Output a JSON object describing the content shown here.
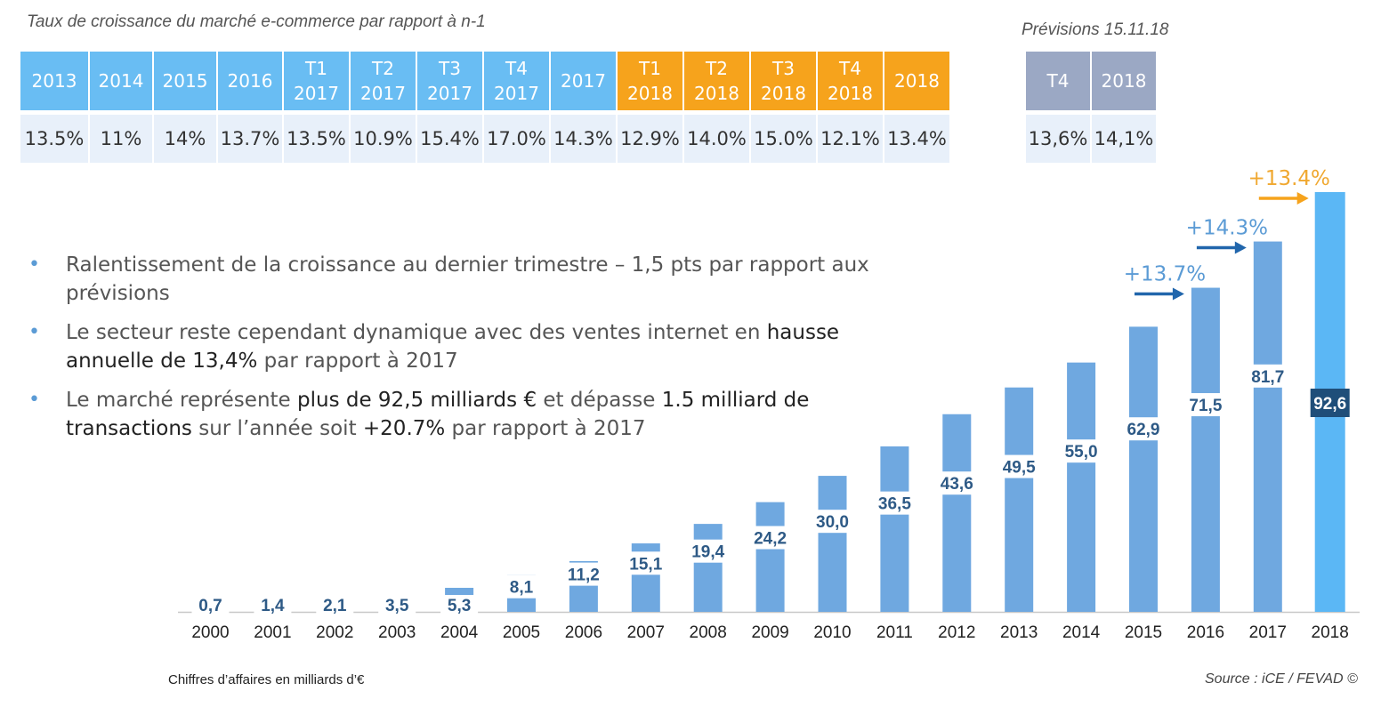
{
  "header": {
    "title": "Taux de croissance du marché e-commerce par rapport à n-1",
    "forecast_title": "Prévisions 15.11.18"
  },
  "growth_table": {
    "columns": [
      {
        "line1": "2013",
        "line2": "",
        "color": "blue",
        "value": "13.5%"
      },
      {
        "line1": "2014",
        "line2": "",
        "color": "blue",
        "value": "11%"
      },
      {
        "line1": "2015",
        "line2": "",
        "color": "blue",
        "value": "14%"
      },
      {
        "line1": "2016",
        "line2": "",
        "color": "blue",
        "value": "13.7%"
      },
      {
        "line1": "T1",
        "line2": "2017",
        "color": "blue",
        "value": "13.5%"
      },
      {
        "line1": "T2",
        "line2": "2017",
        "color": "blue",
        "value": "10.9%"
      },
      {
        "line1": "T3",
        "line2": "2017",
        "color": "blue",
        "value": "15.4%"
      },
      {
        "line1": "T4",
        "line2": "2017",
        "color": "blue",
        "value": "17.0%"
      },
      {
        "line1": "2017",
        "line2": "",
        "color": "blue",
        "value": "14.3%"
      },
      {
        "line1": "T1",
        "line2": "2018",
        "color": "orange",
        "value": "12.9%"
      },
      {
        "line1": "T2",
        "line2": "2018",
        "color": "orange",
        "value": "14.0%"
      },
      {
        "line1": "T3",
        "line2": "2018",
        "color": "orange",
        "value": "15.0%"
      },
      {
        "line1": "T4",
        "line2": "2018",
        "color": "orange",
        "value": "12.1%"
      },
      {
        "line1": "2018",
        "line2": "",
        "color": "orange",
        "value": "13.4%"
      }
    ]
  },
  "forecast_table": {
    "columns": [
      {
        "line1": "T4",
        "line2": "",
        "color": "grey",
        "value": "13,6%"
      },
      {
        "line1": "2018",
        "line2": "",
        "color": "grey",
        "value": "14,1%"
      }
    ]
  },
  "bullets": [
    [
      {
        "t": "Ralentissement de la croissance au dernier trimestre – 1,5 pts par rapport aux prévisions",
        "b": false
      }
    ],
    [
      {
        "t": "Le secteur reste cependant dynamique avec des ventes internet en ",
        "b": false
      },
      {
        "t": "hausse annuelle de 13,4%",
        "b": true
      },
      {
        "t": " par rapport à 2017",
        "b": false
      }
    ],
    [
      {
        "t": "Le marché représente ",
        "b": false
      },
      {
        "t": "plus de 92,5 milliards €",
        "b": true
      },
      {
        "t": " et dépasse ",
        "b": false
      },
      {
        "t": "1.5 milliard de transactions",
        "b": true
      },
      {
        "t": " sur l’année soit ",
        "b": false
      },
      {
        "t": "+20.7%",
        "b": true
      },
      {
        "t": " par rapport à 2017",
        "b": false
      }
    ]
  ],
  "colors": {
    "bar": "#6fa8e0",
    "bar_highlight": "#5bb7f5",
    "label_text": "#2e5a86",
    "label_box": "#1f4e79",
    "arrow_blue": "#2166ac",
    "arrow_orange": "#f6a31c",
    "growth_blue": "#5b9bd5",
    "growth_orange": "#f0a830",
    "header_blue": "#69bdf3",
    "header_orange": "#f6a31c",
    "header_grey": "#9ba8c4"
  },
  "chart_data": {
    "type": "bar",
    "categories": [
      "2000",
      "2001",
      "2002",
      "2003",
      "2004",
      "2005",
      "2006",
      "2007",
      "2008",
      "2009",
      "2010",
      "2011",
      "2012",
      "2013",
      "2014",
      "2015",
      "2016",
      "2017",
      "2018"
    ],
    "values": [
      0.7,
      1.4,
      2.1,
      3.5,
      5.3,
      8.1,
      11.2,
      15.1,
      19.4,
      24.2,
      30.0,
      36.5,
      43.6,
      49.5,
      55.0,
      62.9,
      71.5,
      81.7,
      92.6
    ],
    "value_labels": [
      "0,7",
      "1,4",
      "2,1",
      "3,5",
      "5,3",
      "8,1",
      "11,2",
      "15,1",
      "19,4",
      "24,2",
      "30,0",
      "36,5",
      "43,6",
      "49,5",
      "55,0",
      "62,9",
      "71,5",
      "81,7",
      "92,6"
    ],
    "highlight_category": "2018",
    "ylim": [
      0,
      92.6
    ],
    "growth_annotations": [
      {
        "between": [
          "2015",
          "2016"
        ],
        "label": "+13.7%",
        "color": "blue"
      },
      {
        "between": [
          "2016",
          "2017"
        ],
        "label": "+14.3%",
        "color": "blue"
      },
      {
        "between": [
          "2017",
          "2018"
        ],
        "label": "+13.4%",
        "color": "orange"
      }
    ],
    "footnote": "Chiffres d’affaires en milliards d’€",
    "source": "Source : iCE / FEVAD ©"
  }
}
